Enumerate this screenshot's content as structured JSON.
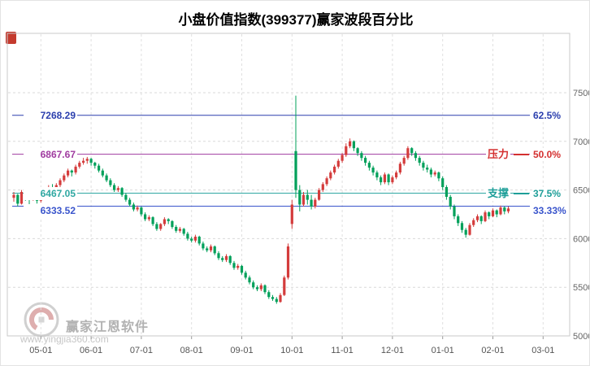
{
  "title": "小盘价值指数(399377)赢家波段百分比",
  "watermark": {
    "brand": "赢家江恩软件",
    "url": "www.yingjia360.com"
  },
  "ref_lines": [
    {
      "price": 7268.29,
      "price_label": "7268.29",
      "percent_label": "62.5%",
      "line_color": "#2b3fae",
      "text_color": "#2b3fae",
      "tag": null,
      "tag_color": null
    },
    {
      "price": 6867.67,
      "price_label": "6867.67",
      "percent_label": "50.0%",
      "line_color": "#a03ca0",
      "text_color": "#d43030",
      "tag": "压力",
      "tag_color": "#d43030"
    },
    {
      "price": 6467.05,
      "price_label": "6467.05",
      "percent_label": "37.5%",
      "line_color": "#2fa8a2",
      "text_color": "#1d9e98",
      "tag": "支撑",
      "tag_color": "#1d9e98"
    },
    {
      "price": 6333.52,
      "price_label": "6333.52",
      "percent_label": "33.33%",
      "line_color": "#3a55cc",
      "text_color": "#3a55cc",
      "tag": null,
      "tag_color": null
    }
  ],
  "chart_data": {
    "type": "candlestick",
    "title": "小盘价值指数(399377)赢家波段百分比",
    "ylim": [
      5000,
      7500
    ],
    "y_ticks": [
      7500,
      7000,
      6500,
      6000,
      5500,
      5000
    ],
    "x_ticks": {
      "labels": [
        "05-01",
        "06-01",
        "07-01",
        "08-01",
        "09-01",
        "10-01",
        "11-01",
        "12-01",
        "01-01",
        "02-01",
        "03-01"
      ],
      "candle_indices": [
        7,
        20,
        33,
        46,
        59,
        72,
        85,
        98,
        111,
        124,
        137
      ]
    },
    "grid": true,
    "up_color": "#d43c3c",
    "down_color": "#00a05a",
    "candles": [
      [
        6420,
        6480,
        6380,
        6450
      ],
      [
        6450,
        6460,
        6330,
        6360
      ],
      [
        6360,
        6500,
        6350,
        6480
      ],
      [
        6480,
        6490,
        6390,
        6420
      ],
      [
        6420,
        6460,
        6340,
        6400
      ],
      [
        6400,
        6500,
        6390,
        6480
      ],
      [
        6480,
        6490,
        6360,
        6390
      ],
      [
        6390,
        6470,
        6370,
        6450
      ],
      [
        6450,
        6520,
        6430,
        6500
      ],
      [
        6500,
        6550,
        6470,
        6530
      ],
      [
        6530,
        6560,
        6450,
        6480
      ],
      [
        6480,
        6570,
        6460,
        6550
      ],
      [
        6550,
        6620,
        6530,
        6600
      ],
      [
        6600,
        6670,
        6580,
        6650
      ],
      [
        6650,
        6720,
        6630,
        6700
      ],
      [
        6700,
        6710,
        6640,
        6680
      ],
      [
        6680,
        6760,
        6660,
        6740
      ],
      [
        6740,
        6800,
        6720,
        6780
      ],
      [
        6780,
        6830,
        6760,
        6800
      ],
      [
        6800,
        6840,
        6770,
        6820
      ],
      [
        6820,
        6830,
        6750,
        6780
      ],
      [
        6780,
        6790,
        6720,
        6750
      ],
      [
        6750,
        6770,
        6680,
        6700
      ],
      [
        6700,
        6720,
        6630,
        6650
      ],
      [
        6650,
        6670,
        6580,
        6600
      ],
      [
        6600,
        6620,
        6530,
        6550
      ],
      [
        6550,
        6570,
        6480,
        6500
      ],
      [
        6500,
        6540,
        6480,
        6520
      ],
      [
        6520,
        6530,
        6430,
        6450
      ],
      [
        6450,
        6470,
        6380,
        6400
      ],
      [
        6400,
        6420,
        6330,
        6350
      ],
      [
        6350,
        6370,
        6280,
        6300
      ],
      [
        6300,
        6340,
        6280,
        6320
      ],
      [
        6320,
        6330,
        6230,
        6250
      ],
      [
        6250,
        6270,
        6180,
        6200
      ],
      [
        6200,
        6240,
        6180,
        6220
      ],
      [
        6220,
        6230,
        6130,
        6150
      ],
      [
        6150,
        6170,
        6080,
        6100
      ],
      [
        6100,
        6160,
        6080,
        6150
      ],
      [
        6150,
        6220,
        6130,
        6200
      ],
      [
        6200,
        6210,
        6150,
        6180
      ],
      [
        6180,
        6190,
        6100,
        6120
      ],
      [
        6120,
        6140,
        6060,
        6080
      ],
      [
        6080,
        6120,
        6060,
        6100
      ],
      [
        6100,
        6110,
        6030,
        6050
      ],
      [
        6050,
        6070,
        5980,
        6000
      ],
      [
        6000,
        6020,
        5960,
        5980
      ],
      [
        5980,
        6040,
        5960,
        6020
      ],
      [
        6020,
        6030,
        5930,
        5950
      ],
      [
        5950,
        5970,
        5880,
        5900
      ],
      [
        5900,
        5920,
        5860,
        5880
      ],
      [
        5880,
        5940,
        5860,
        5920
      ],
      [
        5920,
        5930,
        5830,
        5850
      ],
      [
        5850,
        5870,
        5780,
        5800
      ],
      [
        5800,
        5820,
        5760,
        5780
      ],
      [
        5780,
        5840,
        5760,
        5820
      ],
      [
        5820,
        5830,
        5730,
        5750
      ],
      [
        5750,
        5770,
        5680,
        5700
      ],
      [
        5700,
        5740,
        5680,
        5720
      ],
      [
        5720,
        5730,
        5630,
        5650
      ],
      [
        5650,
        5670,
        5580,
        5600
      ],
      [
        5600,
        5620,
        5530,
        5550
      ],
      [
        5550,
        5570,
        5480,
        5500
      ],
      [
        5500,
        5520,
        5460,
        5480
      ],
      [
        5480,
        5540,
        5460,
        5520
      ],
      [
        5520,
        5530,
        5430,
        5450
      ],
      [
        5450,
        5470,
        5380,
        5400
      ],
      [
        5400,
        5420,
        5360,
        5380
      ],
      [
        5380,
        5400,
        5330,
        5350
      ],
      [
        5350,
        5440,
        5340,
        5420
      ],
      [
        5420,
        5620,
        5410,
        5600
      ],
      [
        5600,
        5950,
        5580,
        5920
      ],
      [
        6150,
        6400,
        6100,
        6350
      ],
      [
        6900,
        7470,
        6420,
        6500
      ],
      [
        6500,
        6550,
        6280,
        6350
      ],
      [
        6350,
        6480,
        6330,
        6450
      ],
      [
        6450,
        6500,
        6350,
        6400
      ],
      [
        6400,
        6450,
        6300,
        6330
      ],
      [
        6330,
        6420,
        6310,
        6400
      ],
      [
        6400,
        6520,
        6390,
        6500
      ],
      [
        6500,
        6580,
        6480,
        6560
      ],
      [
        6560,
        6640,
        6540,
        6620
      ],
      [
        6620,
        6700,
        6600,
        6680
      ],
      [
        6680,
        6760,
        6660,
        6740
      ],
      [
        6740,
        6820,
        6720,
        6800
      ],
      [
        6800,
        6880,
        6780,
        6860
      ],
      [
        6860,
        6980,
        6840,
        6950
      ],
      [
        6950,
        7030,
        6930,
        7000
      ],
      [
        7000,
        7010,
        6900,
        6930
      ],
      [
        6930,
        6940,
        6850,
        6880
      ],
      [
        6880,
        6900,
        6800,
        6830
      ],
      [
        6830,
        6850,
        6750,
        6780
      ],
      [
        6780,
        6800,
        6700,
        6730
      ],
      [
        6730,
        6750,
        6650,
        6680
      ],
      [
        6680,
        6700,
        6600,
        6630
      ],
      [
        6630,
        6650,
        6550,
        6580
      ],
      [
        6580,
        6680,
        6560,
        6660
      ],
      [
        6660,
        6670,
        6550,
        6580
      ],
      [
        6580,
        6650,
        6560,
        6630
      ],
      [
        6630,
        6700,
        6610,
        6680
      ],
      [
        6680,
        6790,
        6660,
        6770
      ],
      [
        6770,
        6850,
        6750,
        6830
      ],
      [
        6830,
        6950,
        6810,
        6930
      ],
      [
        6930,
        6940,
        6850,
        6880
      ],
      [
        6880,
        6900,
        6800,
        6830
      ],
      [
        6830,
        6850,
        6750,
        6780
      ],
      [
        6780,
        6800,
        6700,
        6730
      ],
      [
        6730,
        6760,
        6680,
        6710
      ],
      [
        6710,
        6730,
        6630,
        6660
      ],
      [
        6660,
        6700,
        6640,
        6680
      ],
      [
        6680,
        6690,
        6590,
        6620
      ],
      [
        6620,
        6640,
        6500,
        6530
      ],
      [
        6530,
        6550,
        6400,
        6430
      ],
      [
        6430,
        6450,
        6300,
        6330
      ],
      [
        6330,
        6350,
        6200,
        6230
      ],
      [
        6230,
        6250,
        6130,
        6160
      ],
      [
        6160,
        6180,
        6060,
        6090
      ],
      [
        6090,
        6110,
        6010,
        6040
      ],
      [
        6040,
        6160,
        6030,
        6140
      ],
      [
        6140,
        6210,
        6120,
        6190
      ],
      [
        6190,
        6250,
        6170,
        6230
      ],
      [
        6230,
        6240,
        6150,
        6180
      ],
      [
        6180,
        6290,
        6170,
        6270
      ],
      [
        6270,
        6280,
        6200,
        6230
      ],
      [
        6230,
        6310,
        6220,
        6290
      ],
      [
        6290,
        6300,
        6220,
        6250
      ],
      [
        6250,
        6340,
        6240,
        6320
      ],
      [
        6320,
        6330,
        6250,
        6280
      ],
      [
        6280,
        6330,
        6260,
        6310
      ]
    ]
  }
}
